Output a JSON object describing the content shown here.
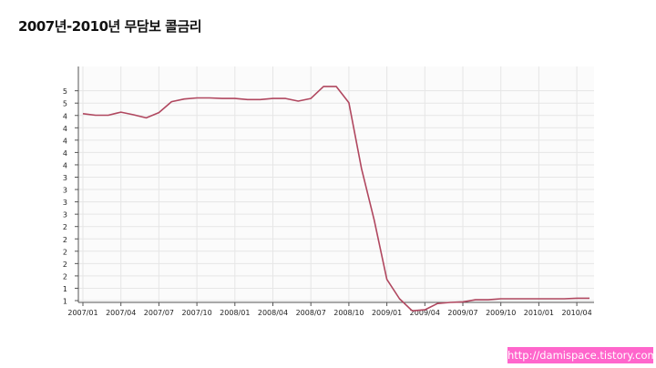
{
  "title": "2007년-2010년 무담보 콜금리",
  "watermark": "http://damispace.tistory.com",
  "colors": {
    "line": "#b0475f",
    "grid": "#e6e6e6",
    "axis": "#555555",
    "watermark_bg": "#ff66cc"
  },
  "chart_data": {
    "type": "line",
    "x_ticks": [
      "2007/01",
      "2007/04",
      "2007/07",
      "2007/10",
      "2008/01",
      "2008/04",
      "2008/07",
      "2008/10",
      "2009/01",
      "2009/04",
      "2009/07",
      "2009/10",
      "2010/01",
      "2010/04"
    ],
    "y_tick_labels": [
      "1",
      "1",
      "2",
      "2",
      "2",
      "2",
      "2",
      "3",
      "3",
      "3",
      "3",
      "4",
      "4",
      "4",
      "4",
      "4",
      "5",
      "5"
    ],
    "ylim": [
      0.9,
      5.4
    ],
    "grid": true,
    "x": [
      "2007/01",
      "2007/02",
      "2007/03",
      "2007/04",
      "2007/05",
      "2007/06",
      "2007/07",
      "2007/08",
      "2007/09",
      "2007/10",
      "2007/11",
      "2007/12",
      "2008/01",
      "2008/02",
      "2008/03",
      "2008/04",
      "2008/05",
      "2008/06",
      "2008/07",
      "2008/08",
      "2008/09",
      "2008/10",
      "2008/11",
      "2008/12",
      "2009/01",
      "2009/02",
      "2009/03",
      "2009/04",
      "2009/05",
      "2009/06",
      "2009/07",
      "2009/08",
      "2009/09",
      "2009/10",
      "2009/11",
      "2009/12",
      "2010/01",
      "2010/02",
      "2010/03",
      "2010/04",
      "2010/05"
    ],
    "values": [
      4.5,
      4.47,
      4.47,
      4.53,
      4.48,
      4.42,
      4.52,
      4.73,
      4.78,
      4.8,
      4.8,
      4.79,
      4.79,
      4.77,
      4.77,
      4.79,
      4.79,
      4.74,
      4.79,
      5.02,
      5.02,
      4.71,
      3.45,
      2.47,
      1.34,
      0.97,
      0.74,
      0.76,
      0.88,
      0.9,
      0.91,
      0.95,
      0.95,
      0.97,
      0.97,
      0.97,
      0.97,
      0.97,
      0.97,
      0.98,
      0.98
    ]
  }
}
